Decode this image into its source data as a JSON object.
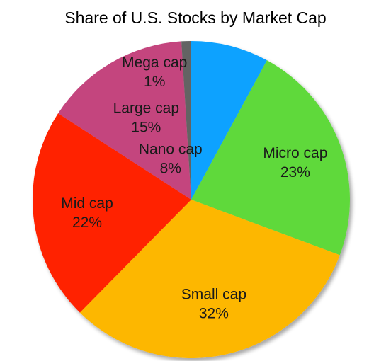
{
  "chart_data": {
    "type": "pie",
    "title": "Share of U.S. Stocks by Market Cap",
    "slices": [
      {
        "name": "Nano cap",
        "value": 8,
        "label": "8%",
        "color": "#0aa2ff"
      },
      {
        "name": "Micro cap",
        "value": 23,
        "label": "23%",
        "color": "#5fd93b"
      },
      {
        "name": "Small cap",
        "value": 32,
        "label": "32%",
        "color": "#fdb700"
      },
      {
        "name": "Mid cap",
        "value": 22,
        "label": "22%",
        "color": "#ff2200"
      },
      {
        "name": "Large cap",
        "value": 15,
        "label": "15%",
        "color": "#c4457e"
      },
      {
        "name": "Mega cap",
        "value": 1,
        "label": "1%",
        "color": "#646464"
      }
    ]
  }
}
